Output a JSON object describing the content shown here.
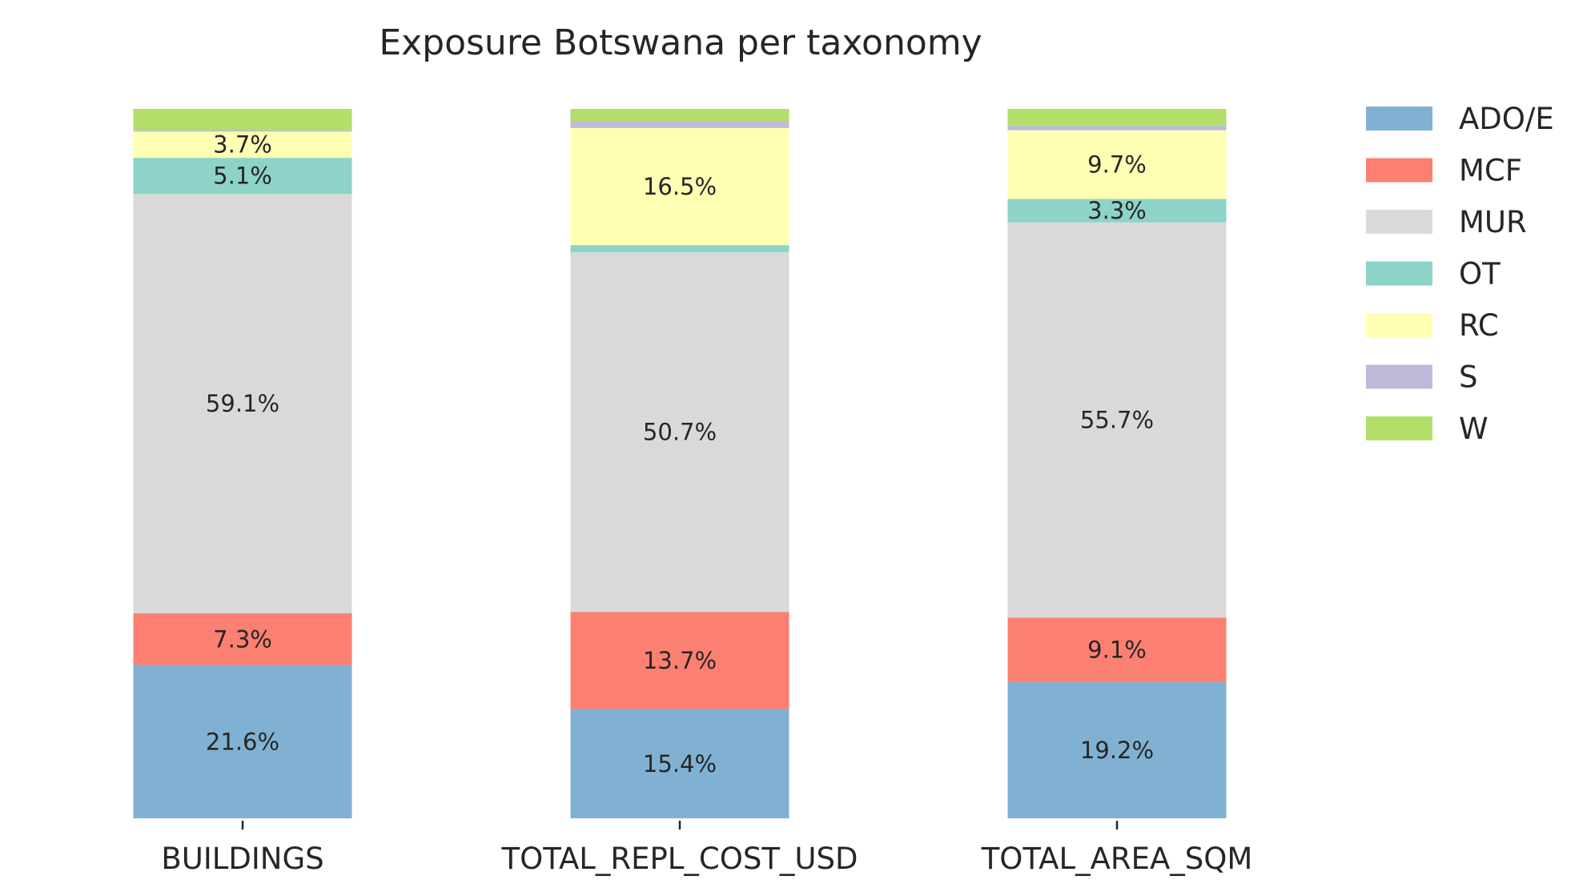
{
  "chart_data": {
    "type": "bar",
    "stacked": true,
    "normalized": true,
    "title": "Exposure Botswana per taxonomy",
    "xlabel": "",
    "ylabel": "",
    "ylim": [
      0,
      100
    ],
    "grid": false,
    "legend_position": "right",
    "categories": [
      "BUILDINGS",
      "TOTAL_REPL_COST_USD",
      "TOTAL_AREA_SQM"
    ],
    "series": [
      {
        "name": "ADO/E",
        "color": "#80b1d3",
        "values": [
          21.6,
          15.4,
          19.2
        ],
        "labels": [
          "21.6%",
          "15.4%",
          "19.2%"
        ]
      },
      {
        "name": "MCF",
        "color": "#fb8072",
        "values": [
          7.3,
          13.7,
          9.1
        ],
        "labels": [
          "7.3%",
          "13.7%",
          "9.1%"
        ]
      },
      {
        "name": "MUR",
        "color": "#d9d9d9",
        "values": [
          59.1,
          50.7,
          55.7
        ],
        "labels": [
          "59.1%",
          "50.7%",
          "55.7%"
        ]
      },
      {
        "name": "OT",
        "color": "#8dd3c7",
        "values": [
          5.1,
          1.0,
          3.3
        ],
        "labels": [
          "5.1%",
          "",
          "3.3%"
        ]
      },
      {
        "name": "RC",
        "color": "#ffffb3",
        "values": [
          3.7,
          16.5,
          9.7
        ],
        "labels": [
          "3.7%",
          "16.5%",
          "9.7%"
        ]
      },
      {
        "name": "S",
        "color": "#bebada",
        "values": [
          0.2,
          1.0,
          0.6
        ],
        "labels": [
          "",
          "",
          ""
        ]
      },
      {
        "name": "W",
        "color": "#b3de69",
        "values": [
          3.0,
          1.7,
          2.4
        ],
        "labels": [
          "",
          "",
          ""
        ]
      }
    ]
  }
}
